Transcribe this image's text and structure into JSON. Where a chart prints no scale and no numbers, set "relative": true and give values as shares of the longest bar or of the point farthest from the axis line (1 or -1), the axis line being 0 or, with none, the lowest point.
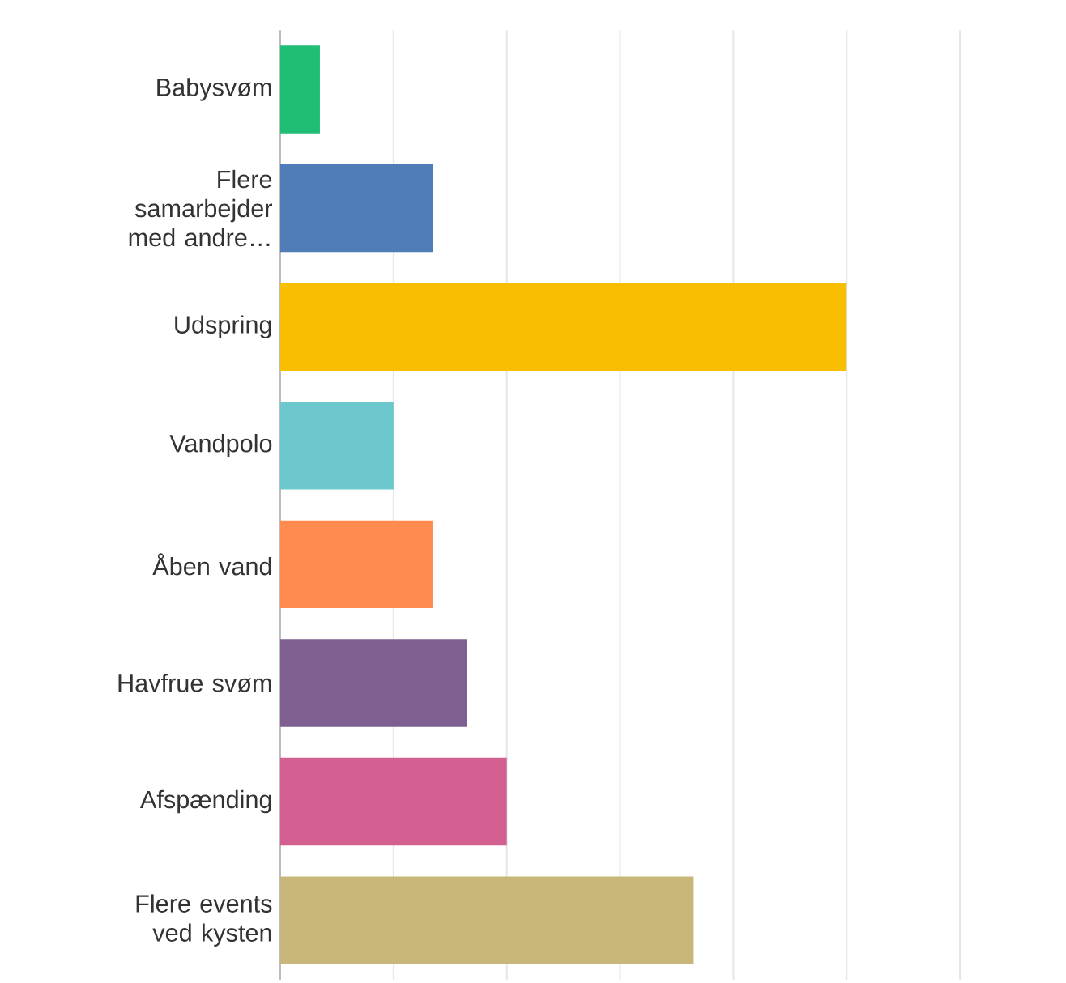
{
  "chart_data": {
    "type": "bar",
    "orientation": "horizontal",
    "relative": true,
    "grid": "x",
    "categories": [
      "Babysvøm",
      "Flere samarbejder med andre…",
      "Udspring",
      "Vandpolo",
      "Åben vand",
      "Havfrue svøm",
      "Afspænding",
      "Flere events ved kysten"
    ],
    "values": [
      0.07,
      0.27,
      1,
      0.2,
      0.27,
      0.33,
      0.4,
      0.73
    ],
    "colors": [
      "#1fbe74",
      "#4f7db8",
      "#f9be00",
      "#6cc8cc",
      "#ff8b4f",
      "#7e5f8f",
      "#d25f8f",
      "#c9b77a"
    ]
  }
}
